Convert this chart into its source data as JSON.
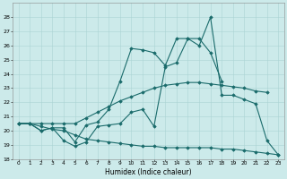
{
  "xlabel": "Humidex (Indice chaleur)",
  "ylabel": "",
  "bg_color": "#cceaea",
  "grid_color": "#aad4d4",
  "line_color": "#1a6b6b",
  "x": [
    0,
    1,
    2,
    3,
    4,
    5,
    6,
    7,
    8,
    9,
    10,
    11,
    12,
    13,
    14,
    15,
    16,
    17,
    18,
    19,
    20,
    21,
    22,
    23
  ],
  "line1": [
    20.5,
    20.5,
    20.0,
    20.2,
    19.3,
    18.9,
    19.2,
    20.3,
    20.4,
    20.5,
    21.3,
    21.5,
    20.3,
    24.5,
    24.8,
    26.5,
    26.0,
    28.0,
    22.5,
    22.5,
    22.2,
    21.9,
    19.3,
    18.3
  ],
  "line2": [
    20.5,
    20.5,
    20.0,
    20.2,
    20.2,
    19.2,
    20.4,
    20.6,
    21.5,
    23.5,
    25.8,
    25.7,
    25.5,
    24.6,
    26.5,
    26.5,
    26.5,
    25.5,
    23.5,
    null,
    null,
    null,
    null,
    null
  ],
  "line3": [
    20.5,
    20.5,
    20.5,
    20.5,
    20.5,
    20.5,
    20.9,
    21.3,
    21.7,
    22.1,
    22.4,
    22.7,
    23.0,
    23.2,
    23.3,
    23.4,
    23.4,
    23.3,
    23.2,
    23.1,
    23.0,
    22.8,
    22.7,
    null
  ],
  "line4": [
    20.5,
    20.5,
    20.3,
    20.1,
    20.0,
    19.7,
    19.4,
    19.3,
    19.2,
    19.1,
    19.0,
    18.9,
    18.9,
    18.8,
    18.8,
    18.8,
    18.8,
    18.8,
    18.7,
    18.7,
    18.6,
    18.5,
    18.4,
    18.3
  ],
  "ylim": [
    18,
    29
  ],
  "xlim": [
    -0.5,
    23.5
  ],
  "yticks": [
    18,
    19,
    20,
    21,
    22,
    23,
    24,
    25,
    26,
    27,
    28
  ],
  "xticks": [
    0,
    1,
    2,
    3,
    4,
    5,
    6,
    7,
    8,
    9,
    10,
    11,
    12,
    13,
    14,
    15,
    16,
    17,
    18,
    19,
    20,
    21,
    22,
    23
  ]
}
